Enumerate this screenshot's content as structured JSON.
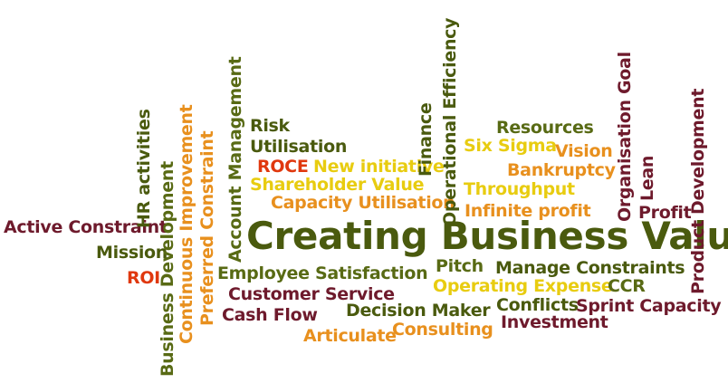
{
  "colors": {
    "dark_green": "#4a5a0e",
    "olive": "#586a14",
    "maroon": "#6e1a2c",
    "orange": "#e8901e",
    "yellow": "#e8cc10",
    "red": "#e0380e"
  },
  "words": [
    {
      "text": "Creating Business Value",
      "color": "#4a5a0e"
    },
    {
      "text": "Active Constraint",
      "color": "#6e1a2c"
    },
    {
      "text": "Mission",
      "color": "#4a5a0e"
    },
    {
      "text": "ROI",
      "color": "#e0380e"
    },
    {
      "text": "HR activities",
      "color": "#4a5a0e"
    },
    {
      "text": "Business Development",
      "color": "#586a14"
    },
    {
      "text": "Continuous Improvement",
      "color": "#e8901e"
    },
    {
      "text": "Preferred Constraint",
      "color": "#e8901e"
    },
    {
      "text": "Account Management",
      "color": "#586a14"
    },
    {
      "text": "Risk",
      "color": "#4a5a0e"
    },
    {
      "text": "Utilisation",
      "color": "#4a5a0e"
    },
    {
      "text": "ROCE",
      "color": "#e0380e"
    },
    {
      "text": "New initiative",
      "color": "#e8cc10"
    },
    {
      "text": "Shareholder Value",
      "color": "#e8cc10"
    },
    {
      "text": "Capacity Utilisation",
      "color": "#e8901e"
    },
    {
      "text": "Finance",
      "color": "#4a5a0e"
    },
    {
      "text": "Operational Efficiency",
      "color": "#4a5a0e"
    },
    {
      "text": "Resources",
      "color": "#586a14"
    },
    {
      "text": "Six Sigma",
      "color": "#e8cc10"
    },
    {
      "text": "Vision",
      "color": "#e8901e"
    },
    {
      "text": "Bankruptcy",
      "color": "#e8901e"
    },
    {
      "text": "Throughput",
      "color": "#e8cc10"
    },
    {
      "text": "Infinite profit",
      "color": "#e8901e"
    },
    {
      "text": "Organisation Goal",
      "color": "#6e1a2c"
    },
    {
      "text": "Lean",
      "color": "#6e1a2c"
    },
    {
      "text": "Profit",
      "color": "#6e1a2c"
    },
    {
      "text": "Product Development",
      "color": "#6e1a2c"
    },
    {
      "text": "Employee Satisfaction",
      "color": "#586a14"
    },
    {
      "text": "Customer Service",
      "color": "#6e1a2c"
    },
    {
      "text": "Cash Flow",
      "color": "#6e1a2c"
    },
    {
      "text": "Pitch",
      "color": "#586a14"
    },
    {
      "text": "Manage Constraints",
      "color": "#4a5a0e"
    },
    {
      "text": "Operating Expense",
      "color": "#e8cc10"
    },
    {
      "text": "CCR",
      "color": "#586a14"
    },
    {
      "text": "Decision Maker",
      "color": "#4a5a0e"
    },
    {
      "text": "Conflicts",
      "color": "#4a5a0e"
    },
    {
      "text": "Sprint Capacity",
      "color": "#6e1a2c"
    },
    {
      "text": "Articulate",
      "color": "#e8901e"
    },
    {
      "text": "Consulting",
      "color": "#e8901e"
    },
    {
      "text": "Investment",
      "color": "#6e1a2c"
    }
  ]
}
